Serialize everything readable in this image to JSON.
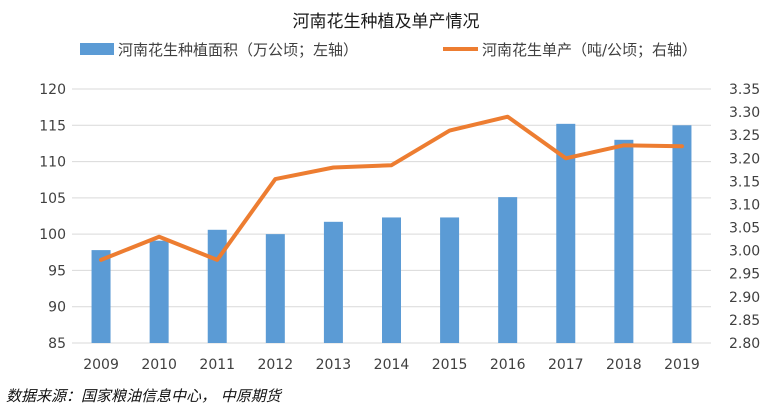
{
  "chart_data": {
    "type": "bar+line",
    "title": "河南花生种植及单产情况",
    "categories": [
      "2009",
      "2010",
      "2011",
      "2012",
      "2013",
      "2014",
      "2015",
      "2016",
      "2017",
      "2018",
      "2019"
    ],
    "series": [
      {
        "name": "河南花生种植面积（万公顷；左轴）",
        "type": "bar",
        "axis": "left",
        "color": "#5b9bd5",
        "values": [
          97.8,
          99.1,
          100.6,
          100.0,
          101.7,
          102.3,
          102.3,
          105.1,
          115.2,
          113.0,
          115.0
        ]
      },
      {
        "name": "河南花生单产（吨/公顷；右轴）",
        "type": "line",
        "axis": "right",
        "color": "#ed7d31",
        "values": [
          2.98,
          3.03,
          2.98,
          3.155,
          3.18,
          3.185,
          3.26,
          3.29,
          3.2,
          3.228,
          3.226
        ]
      }
    ],
    "y_left": {
      "min": 85,
      "max": 120,
      "step": 5,
      "ticks": [
        "85",
        "90",
        "95",
        "100",
        "105",
        "110",
        "115",
        "120"
      ]
    },
    "y_right": {
      "min": 2.8,
      "max": 3.35,
      "step": 0.05,
      "ticks": [
        "2.80",
        "2.85",
        "2.90",
        "2.95",
        "3.00",
        "3.05",
        "3.10",
        "3.15",
        "3.20",
        "3.25",
        "3.30",
        "3.35"
      ]
    },
    "grid": true,
    "legend_position": "top"
  },
  "source_text": "数据来源：国家粮油信息中心， 中原期货"
}
